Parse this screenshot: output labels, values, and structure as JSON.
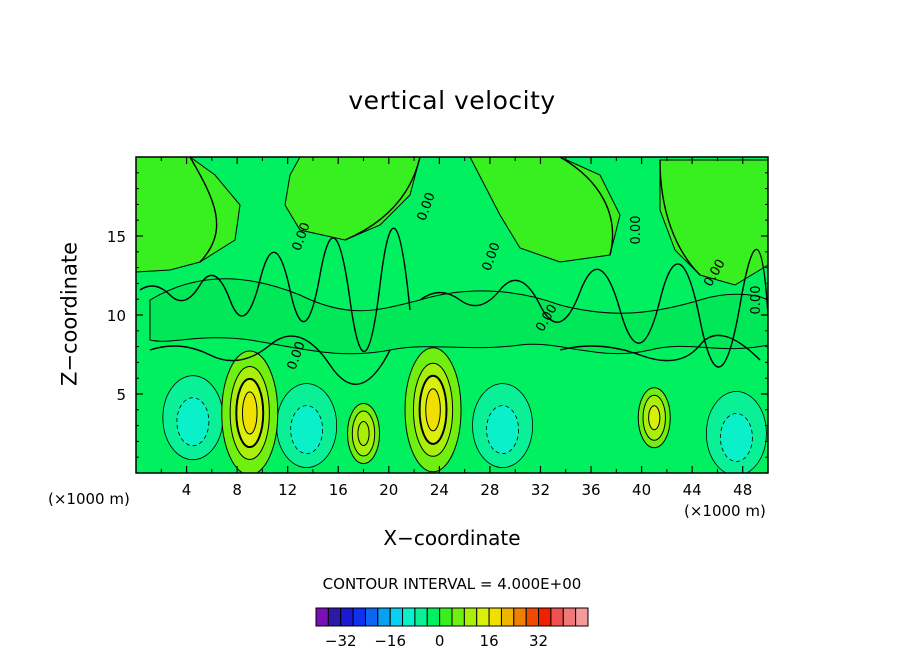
{
  "chart_data": {
    "type": "heatmap",
    "title": "vertical velocity",
    "xlabel": "X−coordinate",
    "ylabel": "Z−coordinate",
    "x_unit_label": "(×1000 m)",
    "x_unit_label_right": "(×1000 m)",
    "xlim": [
      0,
      50
    ],
    "ylim": [
      0,
      20
    ],
    "x_ticks": [
      4,
      8,
      12,
      16,
      20,
      24,
      28,
      32,
      36,
      40,
      44,
      48
    ],
    "x_tick_labels": [
      "4",
      "8",
      "12",
      "16",
      "20",
      "24",
      "28",
      "32",
      "36",
      "40",
      "44",
      "48"
    ],
    "y_ticks": [
      5,
      10,
      15
    ],
    "y_tick_labels": [
      "5",
      "10",
      "15"
    ],
    "contour_interval_text": "CONTOUR INTERVAL = 4.000E+00",
    "contour_line_labels": [
      "0.00",
      "0.00",
      "0.00",
      "0.00",
      "0.00",
      "0.00",
      "0.00",
      "0.00"
    ],
    "colorbar": {
      "colors": [
        "#7a0fb8",
        "#2b1aa8",
        "#1a1ad0",
        "#1030f0",
        "#0a66f0",
        "#0aa0f0",
        "#0ad0f0",
        "#0af0c8",
        "#0af096",
        "#00f060",
        "#38f020",
        "#70f010",
        "#a8f00a",
        "#d8f00a",
        "#f0e000",
        "#f0b400",
        "#f08000",
        "#f04a00",
        "#f02000",
        "#f05050",
        "#f07878",
        "#f59a9a"
      ],
      "min": -40,
      "max": 48,
      "tick_values": [
        -32,
        -16,
        0,
        16,
        32
      ],
      "tick_labels": [
        "−32",
        "−16",
        "0",
        "16",
        "32"
      ]
    },
    "field_summary": {
      "background_level_color": "#00f060",
      "updraft_cores": [
        {
          "x": 9,
          "z": 3.8,
          "max_color": "#f0e000"
        },
        {
          "x": 23.5,
          "z": 4.0,
          "max_color": "#f0e000"
        },
        {
          "x": 41,
          "z": 3.5,
          "max_color": "#d8f00a"
        },
        {
          "x": 18,
          "z": 2.5,
          "max_color": "#a8f00a"
        }
      ],
      "downdraft_regions": [
        {
          "x": 4.5,
          "z": 3.5,
          "min_color": "#0af0c8"
        },
        {
          "x": 13.5,
          "z": 3.0,
          "min_color": "#0af0c8"
        },
        {
          "x": 29,
          "z": 3.0,
          "min_color": "#0af0c8"
        },
        {
          "x": 47.5,
          "z": 2.5,
          "min_color": "#0af0c8"
        }
      ]
    }
  }
}
